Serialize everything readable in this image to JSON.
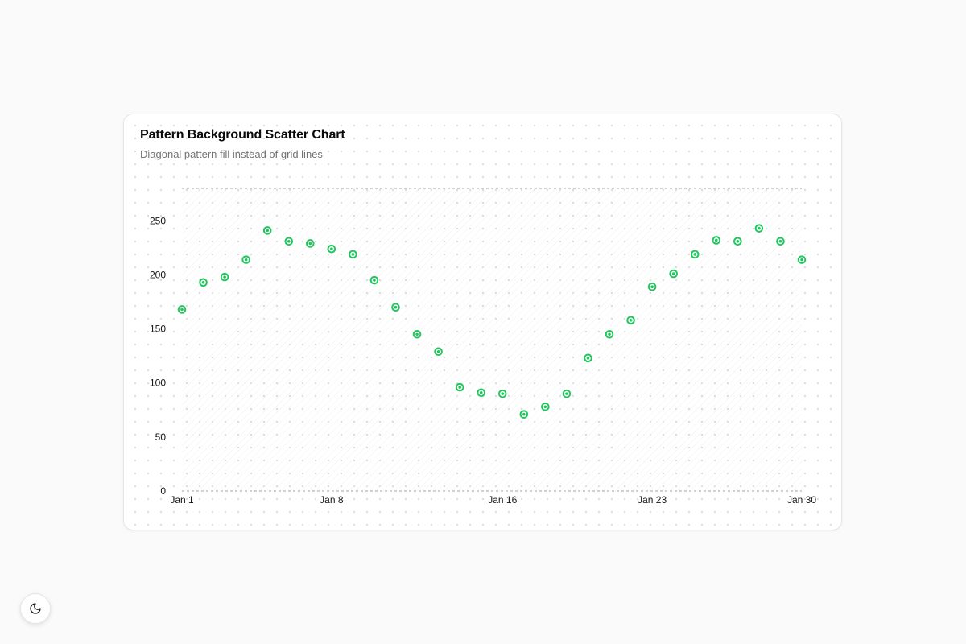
{
  "card": {
    "title": "Pattern Background Scatter Chart",
    "subtitle": "Diagonal pattern fill instead of grid lines"
  },
  "theme_toggle": {
    "icon": "moon-icon"
  },
  "colors": {
    "point": "#22c55e",
    "axis_dashed": "#a3a3a3"
  },
  "chart_data": {
    "type": "scatter",
    "title": "Pattern Background Scatter Chart",
    "subtitle": "Diagonal pattern fill instead of grid lines",
    "xlabel": "",
    "ylabel": "",
    "x": [
      "Jan 1",
      "Jan 2",
      "Jan 3",
      "Jan 4",
      "Jan 5",
      "Jan 6",
      "Jan 7",
      "Jan 8",
      "Jan 9",
      "Jan 10",
      "Jan 11",
      "Jan 12",
      "Jan 13",
      "Jan 14",
      "Jan 15",
      "Jan 16",
      "Jan 17",
      "Jan 18",
      "Jan 19",
      "Jan 20",
      "Jan 21",
      "Jan 22",
      "Jan 23",
      "Jan 24",
      "Jan 25",
      "Jan 26",
      "Jan 27",
      "Jan 28",
      "Jan 29",
      "Jan 30"
    ],
    "series": [
      {
        "values": [
          168,
          193,
          198,
          214,
          241,
          231,
          229,
          224,
          219,
          195,
          170,
          145,
          129,
          96,
          91,
          90,
          71,
          78,
          90,
          123,
          145,
          158,
          189,
          201,
          219,
          232,
          231,
          243,
          231,
          214
        ]
      }
    ],
    "x_tick_labels": [
      "Jan 1",
      "Jan 8",
      "Jan 16",
      "Jan 23",
      "Jan 30"
    ],
    "x_tick_indices": [
      0,
      7,
      15,
      22,
      29
    ],
    "y_ticks": [
      0,
      50,
      100,
      150,
      200,
      250
    ],
    "ylim": [
      0,
      280
    ],
    "grid": false,
    "legend": "none"
  }
}
